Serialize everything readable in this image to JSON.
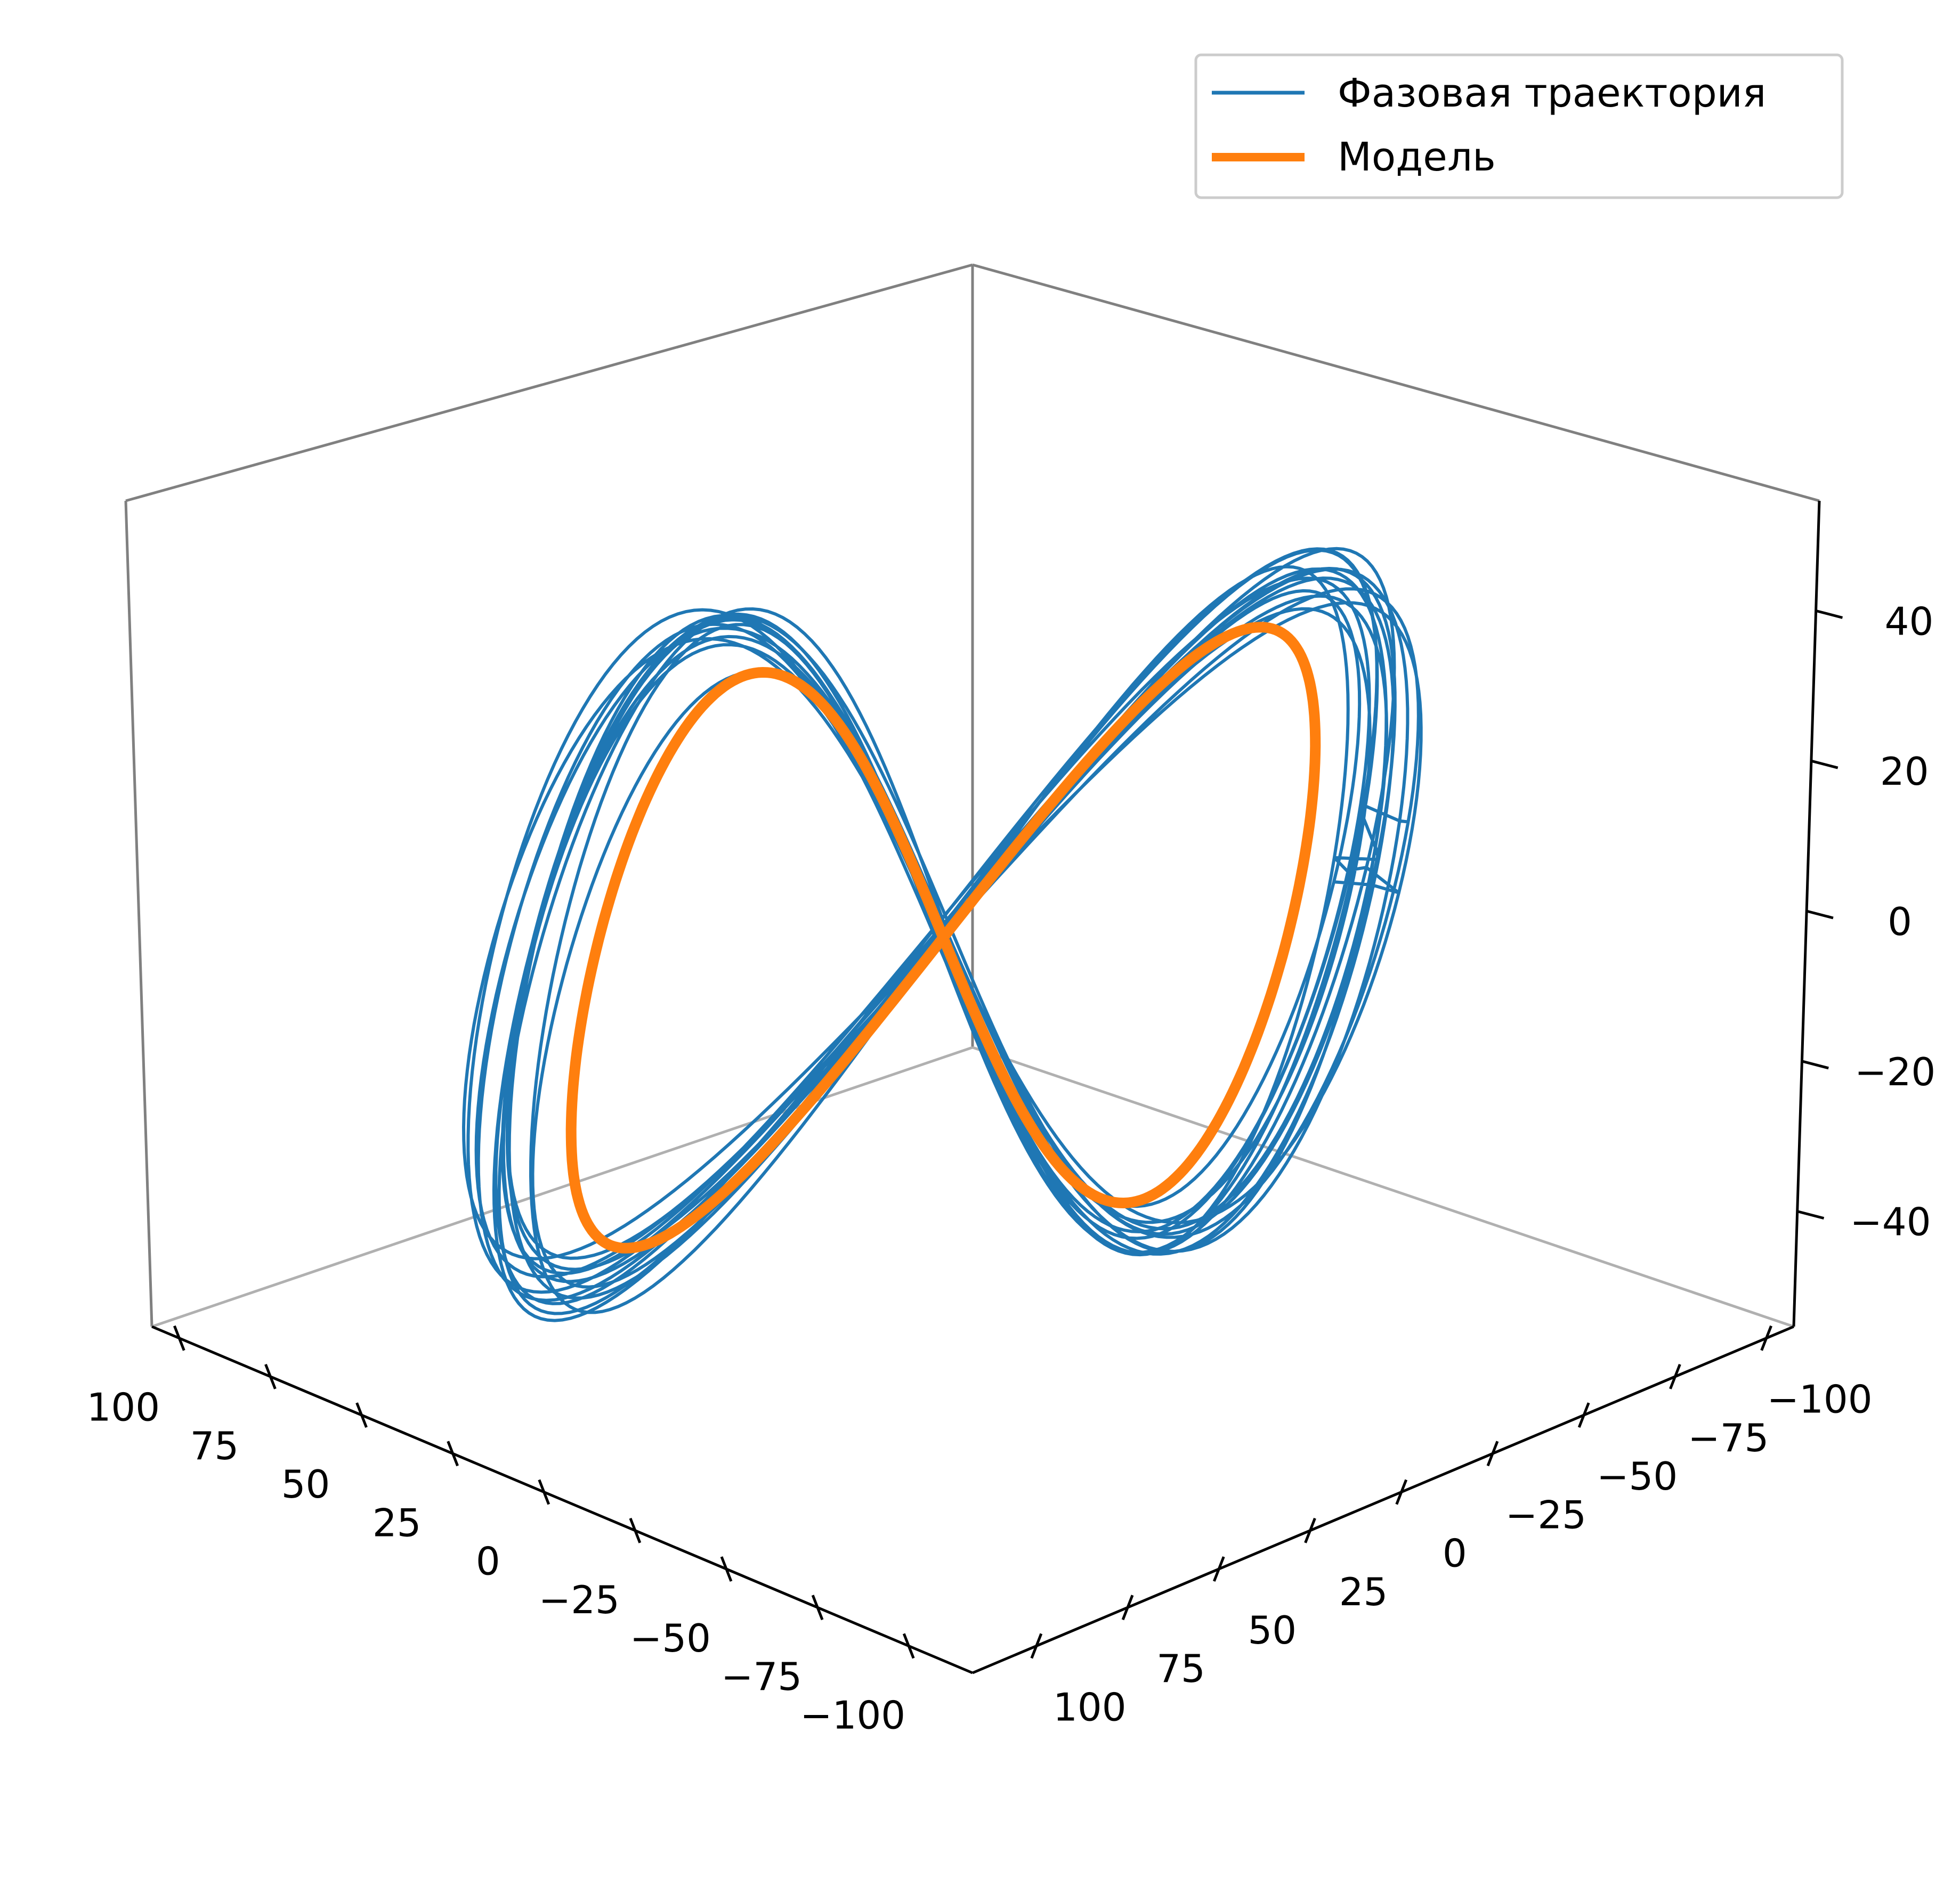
{
  "chart_data": {
    "type": "line",
    "projection": "3d",
    "title": "",
    "xlabel": "",
    "ylabel": "",
    "zlabel": "",
    "grid": false,
    "legend_position": "top-right",
    "x_ticks": [
      "100",
      "75",
      "50",
      "25",
      "0",
      "−25",
      "−50",
      "−75",
      "−100"
    ],
    "y_ticks": [
      "−100",
      "−75",
      "−50",
      "−25",
      "0",
      "25",
      "50",
      "75",
      "100"
    ],
    "z_ticks": [
      "40",
      "20",
      "0",
      "−20",
      "−40"
    ],
    "xlim": [
      -100,
      100
    ],
    "ylim": [
      -100,
      100
    ],
    "zlim": [
      -55,
      55
    ],
    "series": [
      {
        "name": "Фазовая траектория",
        "color": "#1f77b4",
        "style": "thin",
        "shape": "figure-eight loop attractor, many overlapping noisy cycles",
        "x": [
          -8,
          62,
          96,
          84,
          40,
          -8,
          -62,
          -96,
          -84,
          -40,
          -8
        ],
        "y": [
          -10,
          -50,
          -10,
          60,
          75,
          -10,
          -50,
          30,
          95,
          70,
          -10
        ],
        "z": [
          2,
          35,
          48,
          20,
          -20,
          2,
          32,
          42,
          -10,
          -45,
          2
        ]
      },
      {
        "name": "Модель",
        "color": "#ff7f0e",
        "style": "thick",
        "shape": "single smooth figure-eight limit cycle",
        "x": [
          -5,
          55,
          85,
          75,
          35,
          -5,
          -55,
          -85,
          -75,
          -35,
          -5
        ],
        "y": [
          -8,
          -45,
          -10,
          55,
          70,
          -8,
          -45,
          25,
          85,
          65,
          -8
        ],
        "z": [
          2,
          30,
          42,
          18,
          -18,
          2,
          28,
          38,
          -8,
          -40,
          2
        ]
      }
    ]
  },
  "legend": {
    "items": [
      {
        "label": "Фазовая траектория",
        "color": "#1f77b4"
      },
      {
        "label": "Модель",
        "color": "#ff7f0e"
      }
    ]
  }
}
